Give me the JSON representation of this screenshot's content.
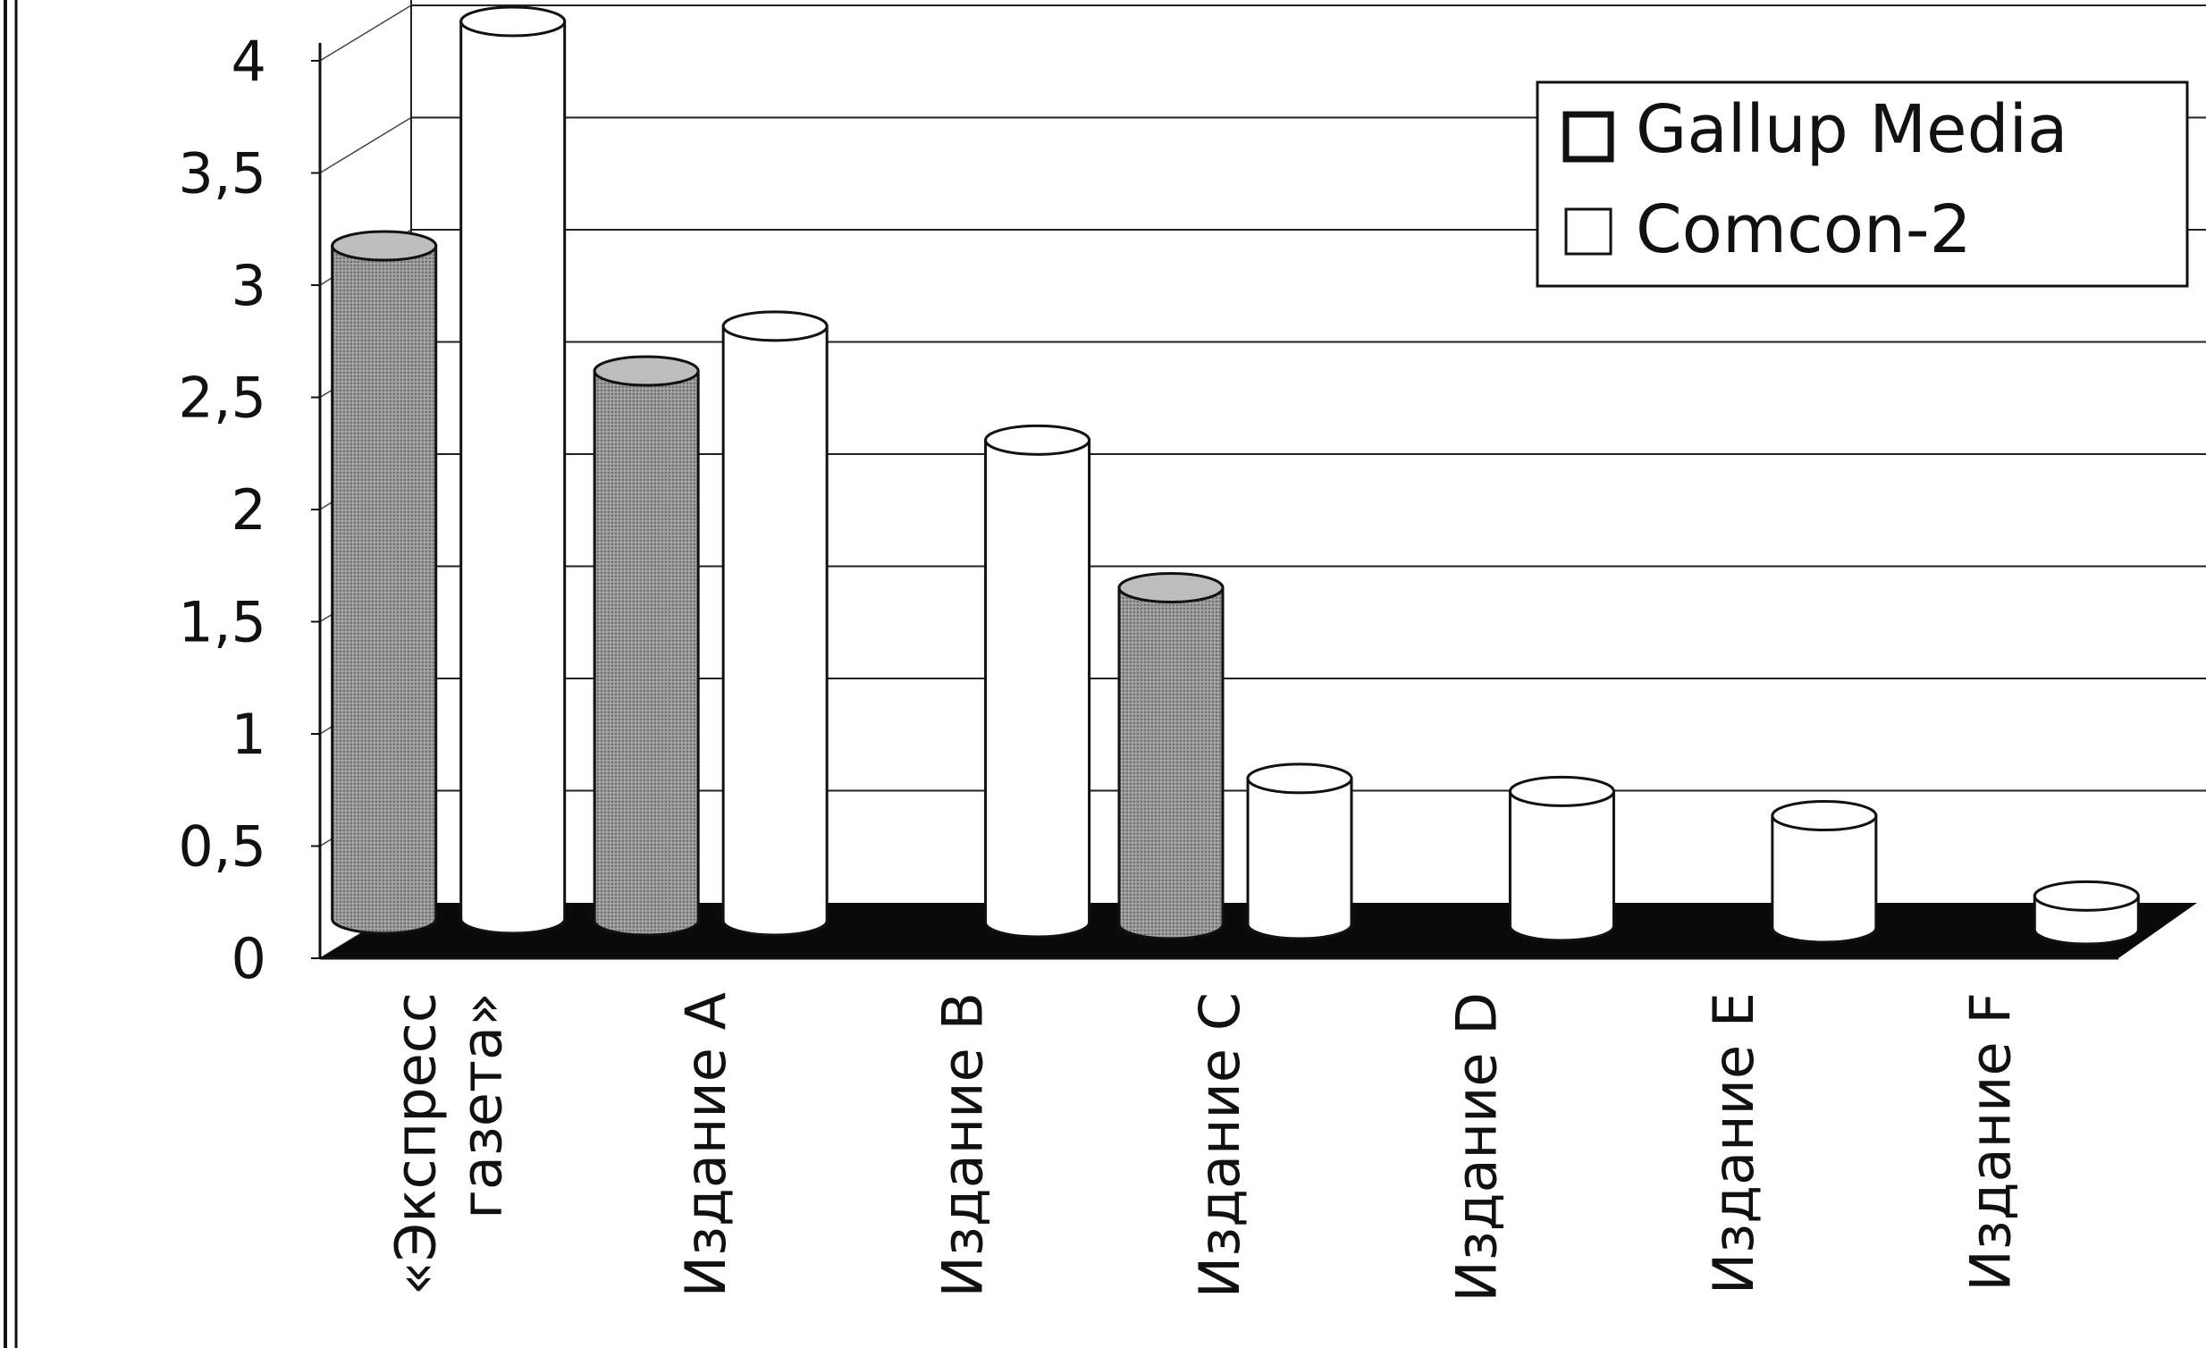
{
  "chart_data": {
    "type": "bar",
    "style": "3d-cylinder",
    "categories": [
      [
        "«Экспресс",
        "газета»"
      ],
      [
        "Издание A"
      ],
      [
        "Издание B"
      ],
      [
        "Издание C"
      ],
      [
        "Издание D"
      ],
      [
        "Издание E"
      ],
      [
        "Издание F"
      ]
    ],
    "series": [
      {
        "name": "Gallup Media",
        "values": [
          3.0,
          2.45,
          null,
          1.5,
          null,
          null,
          null
        ]
      },
      {
        "name": "Comcon-2",
        "values": [
          4.0,
          2.65,
          2.15,
          0.65,
          0.6,
          0.5,
          0.15
        ]
      }
    ],
    "yticks": [
      "0",
      "0,5",
      "1",
      "1,5",
      "2",
      "2,5",
      "3",
      "3,5",
      "4"
    ],
    "ylim": [
      0,
      4
    ],
    "legend_position": "top-right",
    "grid": true,
    "colors": {
      "Gallup Media": "#8f8f8f",
      "Comcon-2": "#ffffff",
      "floor": "#0a0a0a",
      "stroke": "#111111"
    }
  }
}
